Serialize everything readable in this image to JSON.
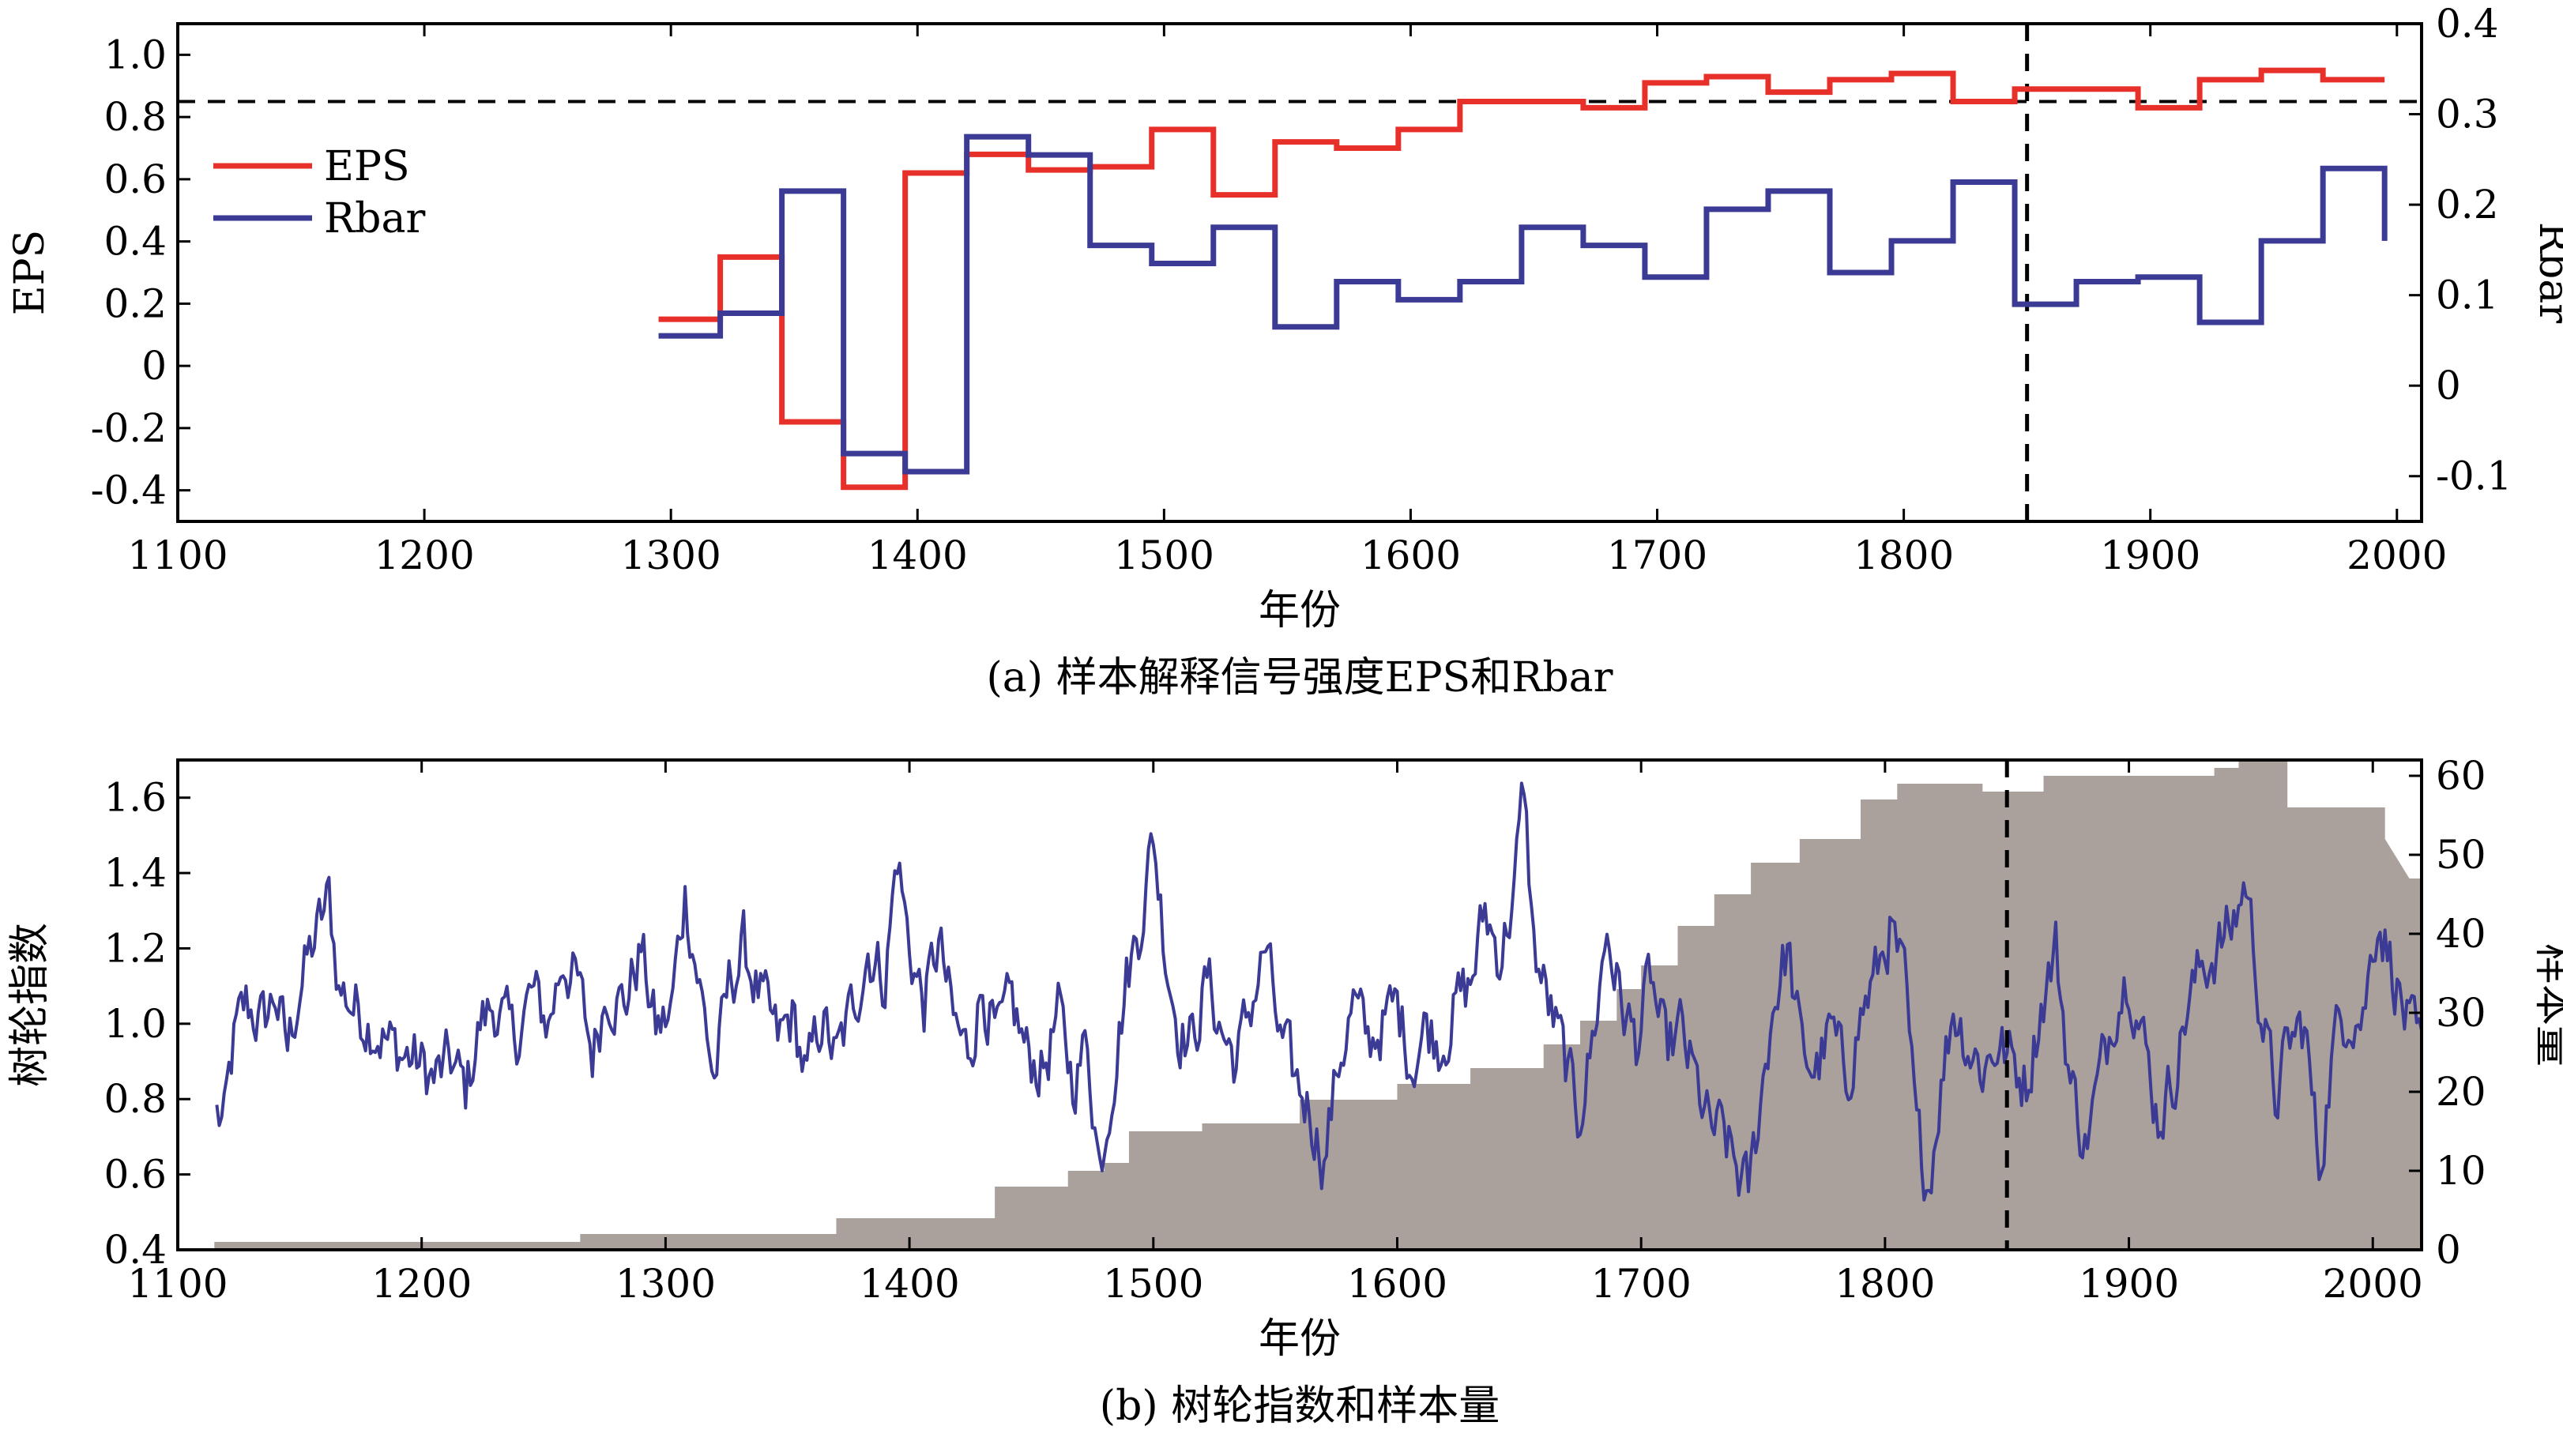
{
  "chart_data": [
    {
      "type": "line",
      "panel": "a",
      "caption": "(a) 样本解释信号强度EPS和Rbar",
      "xlabel": "年份",
      "ylabel": "EPS",
      "y2label": "Rbar",
      "xlim": [
        1100,
        2010
      ],
      "ylim": [
        -0.5,
        1.1
      ],
      "y2lim": [
        -0.15,
        0.4
      ],
      "xticks": [
        "1100",
        "1200",
        "1300",
        "1400",
        "1500",
        "1600",
        "1700",
        "1800",
        "1900",
        "2000"
      ],
      "yticks": [
        "-0.4",
        "-0.2",
        "0",
        "0.2",
        "0.4",
        "0.6",
        "0.8",
        "1.0"
      ],
      "y2ticks": [
        "-0.1",
        "0",
        "0.1",
        "0.2",
        "0.3",
        "0.4"
      ],
      "hline_eps": 0.85,
      "vline_year": 1850,
      "legend_position": "upper-left",
      "series": [
        {
          "name": "EPS",
          "color": "#e8302a",
          "axis": "left",
          "step": true,
          "x": [
            1295,
            1320,
            1345,
            1370,
            1395,
            1420,
            1445,
            1470,
            1495,
            1520,
            1545,
            1570,
            1595,
            1620,
            1645,
            1670,
            1695,
            1720,
            1745,
            1770,
            1795,
            1820,
            1845,
            1870,
            1895,
            1920,
            1945,
            1970,
            1995
          ],
          "values": [
            0.15,
            0.35,
            -0.18,
            -0.39,
            0.62,
            0.68,
            0.63,
            0.64,
            0.76,
            0.55,
            0.72,
            0.7,
            0.76,
            0.85,
            0.85,
            0.83,
            0.91,
            0.93,
            0.88,
            0.92,
            0.94,
            0.85,
            0.89,
            0.89,
            0.83,
            0.92,
            0.95,
            0.92,
            0.92
          ]
        },
        {
          "name": "Rbar",
          "color": "#3b3a94",
          "axis": "right",
          "step": true,
          "x": [
            1295,
            1320,
            1345,
            1370,
            1395,
            1420,
            1445,
            1470,
            1495,
            1520,
            1545,
            1570,
            1595,
            1620,
            1645,
            1670,
            1695,
            1720,
            1745,
            1770,
            1795,
            1820,
            1845,
            1870,
            1895,
            1920,
            1945,
            1970,
            1995
          ],
          "values": [
            0.055,
            0.08,
            0.215,
            -0.075,
            -0.095,
            0.275,
            0.255,
            0.155,
            0.135,
            0.175,
            0.065,
            0.115,
            0.095,
            0.115,
            0.175,
            0.155,
            0.12,
            0.195,
            0.215,
            0.125,
            0.16,
            0.225,
            0.09,
            0.115,
            0.12,
            0.07,
            0.16,
            0.24,
            0.16
          ]
        }
      ]
    },
    {
      "type": "area",
      "panel": "b",
      "caption": "(b) 树轮指数和样本量",
      "xlabel": "年份",
      "ylabel": "树轮指数",
      "y2label": "样本量",
      "xlim": [
        1100,
        2020
      ],
      "ylim": [
        0.4,
        1.7
      ],
      "y2lim": [
        0,
        62
      ],
      "xticks": [
        "1100",
        "1200",
        "1300",
        "1400",
        "1500",
        "1600",
        "1700",
        "1800",
        "1900",
        "2000"
      ],
      "yticks": [
        "0.4",
        "0.6",
        "0.8",
        "1.0",
        "1.2",
        "1.4",
        "1.6"
      ],
      "y2ticks": [
        "0",
        "10",
        "20",
        "30",
        "40",
        "50",
        "60"
      ],
      "vline_year": 1850,
      "sample_size": {
        "name": "样本量",
        "color": "#aaa19d",
        "axis": "right",
        "x": [
          1115,
          1265,
          1265,
          1370,
          1370,
          1435,
          1435,
          1465,
          1465,
          1480,
          1480,
          1490,
          1490,
          1520,
          1520,
          1560,
          1560,
          1600,
          1600,
          1630,
          1630,
          1660,
          1660,
          1675,
          1675,
          1690,
          1690,
          1700,
          1700,
          1715,
          1715,
          1730,
          1730,
          1745,
          1745,
          1765,
          1765,
          1790,
          1790,
          1805,
          1805,
          1840,
          1840,
          1865,
          1865,
          1935,
          1935,
          1945,
          1945,
          1965,
          1965,
          2005,
          2005,
          2015,
          2020
        ],
        "values": [
          1,
          1,
          2,
          2,
          4,
          4,
          8,
          8,
          10,
          10,
          11,
          11,
          15,
          15,
          16,
          16,
          19,
          19,
          21,
          21,
          23,
          23,
          26,
          26,
          29,
          29,
          33,
          33,
          36,
          36,
          41,
          41,
          45,
          45,
          49,
          49,
          52,
          52,
          57,
          57,
          59,
          59,
          58,
          58,
          60,
          60,
          61,
          61,
          62,
          62,
          56,
          56,
          52,
          47,
          47
        ]
      },
      "ring_index": {
        "name": "树轮指数",
        "color": "#3b3a94",
        "axis": "left",
        "start_year": 1116,
        "end_year": 2020,
        "anchors": [
          [
            1116,
            0.76
          ],
          [
            1119,
            0.73
          ],
          [
            1123,
            0.95
          ],
          [
            1128,
            1.05
          ],
          [
            1135,
            1.0
          ],
          [
            1140,
            1.08
          ],
          [
            1145,
            0.93
          ],
          [
            1150,
            1.1
          ],
          [
            1156,
            1.22
          ],
          [
            1162,
            1.33
          ],
          [
            1166,
            1.1
          ],
          [
            1172,
            1.05
          ],
          [
            1180,
            1.0
          ],
          [
            1186,
            0.95
          ],
          [
            1192,
            0.92
          ],
          [
            1198,
            0.9
          ],
          [
            1205,
            0.85
          ],
          [
            1212,
            0.9
          ],
          [
            1218,
            0.82
          ],
          [
            1224,
            1.0
          ],
          [
            1230,
            1.05
          ],
          [
            1238,
            0.95
          ],
          [
            1245,
            1.08
          ],
          [
            1252,
            1.0
          ],
          [
            1258,
            1.18
          ],
          [
            1264,
            1.1
          ],
          [
            1270,
            0.92
          ],
          [
            1276,
            1.1
          ],
          [
            1283,
            1.05
          ],
          [
            1290,
            1.2
          ],
          [
            1296,
            0.98
          ],
          [
            1302,
            1.02
          ],
          [
            1308,
            1.35
          ],
          [
            1314,
            1.1
          ],
          [
            1320,
            0.85
          ],
          [
            1326,
            1.1
          ],
          [
            1332,
            1.2
          ],
          [
            1340,
            1.05
          ],
          [
            1346,
            0.95
          ],
          [
            1352,
            1.02
          ],
          [
            1358,
            0.85
          ],
          [
            1364,
            1.02
          ],
          [
            1370,
            0.9
          ],
          [
            1377,
            1.05
          ],
          [
            1383,
            1.2
          ],
          [
            1390,
            1.12
          ],
          [
            1395,
            1.45
          ],
          [
            1400,
            1.2
          ],
          [
            1406,
            1.05
          ],
          [
            1412,
            1.22
          ],
          [
            1418,
            1.0
          ],
          [
            1424,
            0.92
          ],
          [
            1430,
            1.1
          ],
          [
            1436,
            0.95
          ],
          [
            1442,
            1.05
          ],
          [
            1448,
            0.92
          ],
          [
            1455,
            0.88
          ],
          [
            1461,
            1.02
          ],
          [
            1467,
            0.85
          ],
          [
            1473,
            0.95
          ],
          [
            1478,
            0.62
          ],
          [
            1483,
            0.85
          ],
          [
            1489,
            1.12
          ],
          [
            1494,
            1.25
          ],
          [
            1500,
            1.5
          ],
          [
            1505,
            1.2
          ],
          [
            1510,
            1.0
          ],
          [
            1516,
            0.95
          ],
          [
            1522,
            1.12
          ],
          [
            1528,
            0.98
          ],
          [
            1534,
            0.9
          ],
          [
            1540,
            1.05
          ],
          [
            1546,
            1.2
          ],
          [
            1552,
            0.95
          ],
          [
            1558,
            0.85
          ],
          [
            1564,
            0.78
          ],
          [
            1570,
            0.64
          ],
          [
            1576,
            0.9
          ],
          [
            1582,
            1.05
          ],
          [
            1588,
            0.95
          ],
          [
            1594,
            1.0
          ],
          [
            1600,
            1.05
          ],
          [
            1606,
            0.9
          ],
          [
            1612,
            1.0
          ],
          [
            1618,
            0.95
          ],
          [
            1624,
            1.05
          ],
          [
            1630,
            1.1
          ],
          [
            1636,
            1.3
          ],
          [
            1642,
            1.18
          ],
          [
            1648,
            1.35
          ],
          [
            1652,
            1.63
          ],
          [
            1656,
            1.2
          ],
          [
            1662,
            1.05
          ],
          [
            1668,
            0.92
          ],
          [
            1674,
            0.75
          ],
          [
            1680,
            0.95
          ],
          [
            1686,
            1.25
          ],
          [
            1692,
            1.05
          ],
          [
            1698,
            0.95
          ],
          [
            1704,
            1.12
          ],
          [
            1710,
            0.92
          ],
          [
            1716,
            0.98
          ],
          [
            1722,
            0.85
          ],
          [
            1728,
            0.72
          ],
          [
            1734,
            0.7
          ],
          [
            1740,
            0.6
          ],
          [
            1744,
            0.55
          ],
          [
            1748,
            0.75
          ],
          [
            1754,
            1.05
          ],
          [
            1760,
            1.2
          ],
          [
            1766,
            0.92
          ],
          [
            1772,
            0.88
          ],
          [
            1778,
            0.98
          ],
          [
            1784,
            0.85
          ],
          [
            1790,
            1.02
          ],
          [
            1796,
            1.12
          ],
          [
            1802,
            1.25
          ],
          [
            1808,
            1.1
          ],
          [
            1813,
            0.7
          ],
          [
            1818,
            0.58
          ],
          [
            1822,
            0.8
          ],
          [
            1828,
            1.05
          ],
          [
            1834,
            0.95
          ],
          [
            1840,
            0.88
          ],
          [
            1846,
            0.95
          ],
          [
            1852,
            0.9
          ],
          [
            1858,
            0.85
          ],
          [
            1864,
            1.05
          ],
          [
            1870,
            1.2
          ],
          [
            1876,
            0.85
          ],
          [
            1882,
            0.68
          ],
          [
            1888,
            0.85
          ],
          [
            1894,
            1.05
          ],
          [
            1900,
            1.15
          ],
          [
            1906,
            0.95
          ],
          [
            1912,
            0.75
          ],
          [
            1918,
            0.85
          ],
          [
            1924,
            1.05
          ],
          [
            1930,
            1.15
          ],
          [
            1936,
            1.2
          ],
          [
            1942,
            1.25
          ],
          [
            1948,
            1.38
          ],
          [
            1954,
            1.05
          ],
          [
            1960,
            0.8
          ],
          [
            1966,
            0.95
          ],
          [
            1972,
            1.0
          ],
          [
            1978,
            0.62
          ],
          [
            1984,
            0.95
          ],
          [
            1990,
            1.05
          ],
          [
            1996,
            1.02
          ],
          [
            2002,
            1.3
          ],
          [
            2008,
            1.15
          ],
          [
            2014,
            1.0
          ],
          [
            2020,
            0.9
          ]
        ]
      }
    }
  ]
}
